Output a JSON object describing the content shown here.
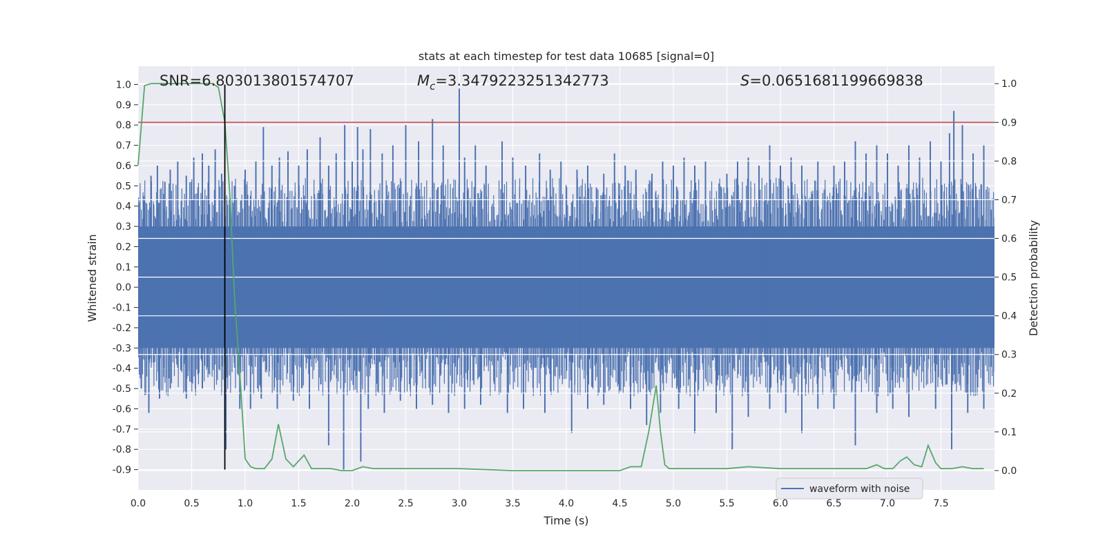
{
  "chart_data": {
    "type": "line",
    "title": "stats at each timestep for test data 10685 [signal=0]",
    "xlabel": "Time (s)",
    "ylabel": "Whitened strain",
    "y2label": "Detection probability",
    "xlim": [
      0.0,
      8.0
    ],
    "ylim": [
      -1.0,
      1.09
    ],
    "y2lim": [
      -0.05,
      1.045
    ],
    "x_ticks": [
      "0.0",
      "0.5",
      "1.0",
      "1.5",
      "2.0",
      "2.5",
      "3.0",
      "3.5",
      "4.0",
      "4.5",
      "5.0",
      "5.5",
      "6.0",
      "6.5",
      "7.0",
      "7.5"
    ],
    "y_ticks": [
      "1.0",
      "0.9",
      "0.8",
      "0.7",
      "0.6",
      "0.5",
      "0.4",
      "0.3",
      "0.2",
      "0.1",
      "0.0",
      "-0.1",
      "-0.2",
      "-0.3",
      "-0.4",
      "-0.5",
      "-0.6",
      "-0.7",
      "-0.8",
      "-0.9"
    ],
    "y2_ticks": [
      "1.0",
      "0.9",
      "0.8",
      "0.7",
      "0.6",
      "0.5",
      "0.4",
      "0.3",
      "0.2",
      "0.1",
      "0.0"
    ],
    "grid": true,
    "legend": {
      "position": "lower-right",
      "entries": [
        "waveform with noise"
      ]
    },
    "annotations": {
      "snr_prefix": "SNR=",
      "snr_value": "6.803013801574707",
      "mc_symbol": "M",
      "mc_sub": "c",
      "mc_value": "=3.3479223251342773",
      "s_symbol": "S",
      "s_value": "=0.0651681199669838"
    },
    "threshold": {
      "y2": 0.9,
      "color": "#c44e52"
    },
    "vline": {
      "x": 0.81,
      "y_from": -0.9,
      "y_to": 1.0,
      "color": "#000000"
    },
    "waveform": {
      "name": "waveform with noise",
      "color": "#4c72b0",
      "dense_band": [
        -0.3,
        0.3
      ],
      "spikes_pos": [
        [
          0.05,
          0.45
        ],
        [
          0.12,
          0.55
        ],
        [
          0.18,
          0.6
        ],
        [
          0.25,
          0.52
        ],
        [
          0.3,
          0.58
        ],
        [
          0.37,
          0.62
        ],
        [
          0.45,
          0.55
        ],
        [
          0.52,
          0.64
        ],
        [
          0.6,
          0.66
        ],
        [
          0.66,
          0.6
        ],
        [
          0.72,
          0.68
        ],
        [
          0.78,
          0.56
        ],
        [
          0.9,
          0.5
        ],
        [
          1.0,
          0.58
        ],
        [
          1.1,
          0.62
        ],
        [
          1.17,
          0.79
        ],
        [
          1.25,
          0.6
        ],
        [
          1.32,
          0.64
        ],
        [
          1.4,
          0.67
        ],
        [
          1.5,
          0.6
        ],
        [
          1.58,
          0.68
        ],
        [
          1.7,
          0.74
        ],
        [
          1.78,
          0.6
        ],
        [
          1.85,
          0.66
        ],
        [
          1.93,
          0.8
        ],
        [
          2.0,
          0.62
        ],
        [
          2.05,
          0.79
        ],
        [
          2.1,
          0.68
        ],
        [
          2.17,
          0.78
        ],
        [
          2.28,
          0.66
        ],
        [
          2.38,
          0.7
        ],
        [
          2.5,
          0.8
        ],
        [
          2.62,
          0.72
        ],
        [
          2.75,
          0.83
        ],
        [
          2.85,
          0.7
        ],
        [
          3.0,
          0.98
        ],
        [
          3.05,
          0.64
        ],
        [
          3.15,
          0.7
        ],
        [
          3.25,
          0.6
        ],
        [
          3.4,
          0.72
        ],
        [
          3.5,
          0.64
        ],
        [
          3.62,
          0.6
        ],
        [
          3.75,
          0.66
        ],
        [
          3.85,
          0.58
        ],
        [
          3.95,
          0.62
        ],
        [
          4.1,
          0.58
        ],
        [
          4.2,
          0.6
        ],
        [
          4.35,
          0.56
        ],
        [
          4.45,
          0.66
        ],
        [
          4.55,
          0.6
        ],
        [
          4.65,
          0.58
        ],
        [
          4.8,
          0.56
        ],
        [
          4.9,
          0.62
        ],
        [
          5.0,
          0.6
        ],
        [
          5.1,
          0.64
        ],
        [
          5.2,
          0.6
        ],
        [
          5.3,
          0.62
        ],
        [
          5.5,
          0.56
        ],
        [
          5.6,
          0.62
        ],
        [
          5.7,
          0.64
        ],
        [
          5.8,
          0.6
        ],
        [
          5.9,
          0.7
        ],
        [
          6.0,
          0.6
        ],
        [
          6.1,
          0.64
        ],
        [
          6.2,
          0.6
        ],
        [
          6.35,
          0.62
        ],
        [
          6.5,
          0.6
        ],
        [
          6.6,
          0.62
        ],
        [
          6.7,
          0.72
        ],
        [
          6.8,
          0.66
        ],
        [
          6.9,
          0.7
        ],
        [
          7.0,
          0.66
        ],
        [
          7.1,
          0.6
        ],
        [
          7.2,
          0.7
        ],
        [
          7.3,
          0.64
        ],
        [
          7.4,
          0.72
        ],
        [
          7.5,
          0.62
        ],
        [
          7.58,
          0.76
        ],
        [
          7.62,
          0.87
        ],
        [
          7.7,
          0.8
        ],
        [
          7.8,
          0.66
        ],
        [
          7.9,
          0.7
        ]
      ],
      "spikes_neg": [
        [
          0.03,
          -0.5
        ],
        [
          0.1,
          -0.62
        ],
        [
          0.2,
          -0.55
        ],
        [
          0.3,
          -0.5
        ],
        [
          0.45,
          -0.55
        ],
        [
          0.6,
          -0.5
        ],
        [
          0.82,
          -0.8
        ],
        [
          0.95,
          -0.6
        ],
        [
          1.05,
          -0.6
        ],
        [
          1.15,
          -0.55
        ],
        [
          1.3,
          -0.6
        ],
        [
          1.45,
          -0.56
        ],
        [
          1.6,
          -0.6
        ],
        [
          1.78,
          -0.78
        ],
        [
          1.92,
          -0.9
        ],
        [
          2.08,
          -0.86
        ],
        [
          2.15,
          -0.6
        ],
        [
          2.3,
          -0.62
        ],
        [
          2.45,
          -0.56
        ],
        [
          2.6,
          -0.6
        ],
        [
          2.75,
          -0.58
        ],
        [
          2.9,
          -0.62
        ],
        [
          3.05,
          -0.6
        ],
        [
          3.2,
          -0.58
        ],
        [
          3.45,
          -0.62
        ],
        [
          3.6,
          -0.6
        ],
        [
          3.8,
          -0.62
        ],
        [
          4.05,
          -0.72
        ],
        [
          4.2,
          -0.6
        ],
        [
          4.35,
          -0.58
        ],
        [
          4.6,
          -0.6
        ],
        [
          4.75,
          -0.68
        ],
        [
          4.88,
          -0.62
        ],
        [
          5.05,
          -0.6
        ],
        [
          5.2,
          -0.72
        ],
        [
          5.4,
          -0.62
        ],
        [
          5.55,
          -0.8
        ],
        [
          5.7,
          -0.64
        ],
        [
          5.9,
          -0.6
        ],
        [
          6.05,
          -0.62
        ],
        [
          6.2,
          -0.72
        ],
        [
          6.35,
          -0.6
        ],
        [
          6.5,
          -0.6
        ],
        [
          6.7,
          -0.78
        ],
        [
          6.9,
          -0.62
        ],
        [
          7.05,
          -0.6
        ],
        [
          7.2,
          -0.64
        ],
        [
          7.45,
          -0.6
        ],
        [
          7.6,
          -0.8
        ],
        [
          7.75,
          -0.62
        ],
        [
          7.9,
          -0.6
        ]
      ]
    },
    "detection_probability": {
      "color": "#55a868",
      "x": [
        0.0,
        0.06,
        0.12,
        0.2,
        0.3,
        0.4,
        0.5,
        0.6,
        0.7,
        0.75,
        0.81,
        0.86,
        0.9,
        0.95,
        1.0,
        1.05,
        1.1,
        1.18,
        1.25,
        1.31,
        1.38,
        1.45,
        1.55,
        1.62,
        1.7,
        1.8,
        1.9,
        2.0,
        2.1,
        2.2,
        2.3,
        2.5,
        2.8,
        3.0,
        3.5,
        4.0,
        4.5,
        4.6,
        4.7,
        4.77,
        4.84,
        4.88,
        4.92,
        4.96,
        5.0,
        5.5,
        5.7,
        6.0,
        6.5,
        6.8,
        6.9,
        6.97,
        7.05,
        7.12,
        7.18,
        7.25,
        7.32,
        7.38,
        7.45,
        7.5,
        7.6,
        7.7,
        7.8,
        7.9
      ],
      "y": [
        0.79,
        0.995,
        1.0,
        1.0,
        1.0,
        1.0,
        1.0,
        1.0,
        1.0,
        0.99,
        0.9,
        0.7,
        0.45,
        0.25,
        0.03,
        0.01,
        0.005,
        0.005,
        0.03,
        0.12,
        0.03,
        0.01,
        0.04,
        0.005,
        0.005,
        0.005,
        0.0,
        0.0,
        0.01,
        0.005,
        0.005,
        0.005,
        0.005,
        0.005,
        0.0,
        0.0,
        0.0,
        0.01,
        0.01,
        0.1,
        0.22,
        0.1,
        0.015,
        0.005,
        0.005,
        0.005,
        0.01,
        0.005,
        0.005,
        0.005,
        0.015,
        0.005,
        0.005,
        0.025,
        0.035,
        0.015,
        0.01,
        0.065,
        0.02,
        0.005,
        0.005,
        0.01,
        0.005,
        0.005
      ]
    }
  }
}
